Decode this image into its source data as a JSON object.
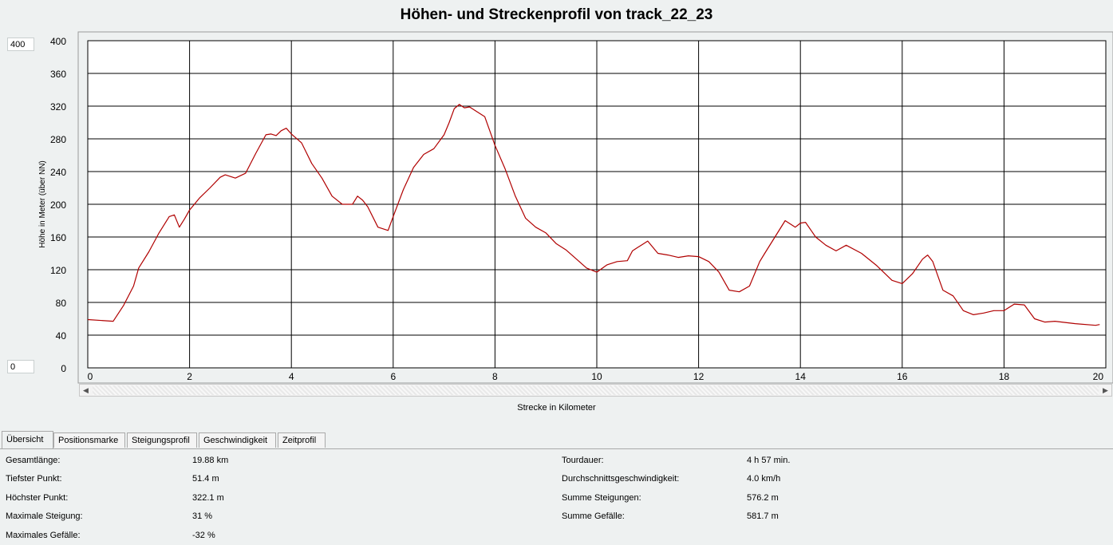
{
  "chart_data": {
    "type": "line",
    "title": "Höhen- und Streckenprofil von track_22_23",
    "xlabel": "Strecke in Kilometer",
    "ylabel": "Höhe in Meter (über NN)",
    "xlim": [
      0,
      20
    ],
    "ylim": [
      0,
      400
    ],
    "x_ticks": [
      0,
      2,
      4,
      6,
      8,
      10,
      12,
      14,
      16,
      18,
      20
    ],
    "y_ticks": [
      0,
      40,
      80,
      120,
      160,
      200,
      240,
      280,
      320,
      360,
      400
    ],
    "grid": true,
    "line_color": "#b00000",
    "x": [
      0,
      0.5,
      0.7,
      0.9,
      1.0,
      1.2,
      1.4,
      1.6,
      1.7,
      1.8,
      1.9,
      2.0,
      2.2,
      2.4,
      2.6,
      2.7,
      2.9,
      3.1,
      3.3,
      3.5,
      3.6,
      3.7,
      3.8,
      3.9,
      4.0,
      4.2,
      4.4,
      4.6,
      4.8,
      5.0,
      5.2,
      5.3,
      5.4,
      5.5,
      5.7,
      5.9,
      6.0,
      6.2,
      6.4,
      6.6,
      6.8,
      7.0,
      7.1,
      7.2,
      7.3,
      7.4,
      7.5,
      7.6,
      7.8,
      8.0,
      8.2,
      8.4,
      8.6,
      8.8,
      9.0,
      9.2,
      9.4,
      9.6,
      9.8,
      10.0,
      10.2,
      10.4,
      10.6,
      10.7,
      10.8,
      10.9,
      11.0,
      11.2,
      11.4,
      11.6,
      11.8,
      12.0,
      12.2,
      12.4,
      12.6,
      12.8,
      13.0,
      13.2,
      13.3,
      13.5,
      13.7,
      13.9,
      14.0,
      14.1,
      14.3,
      14.5,
      14.7,
      14.9,
      15.2,
      15.5,
      15.8,
      16.0,
      16.2,
      16.4,
      16.5,
      16.6,
      16.8,
      17.0,
      17.2,
      17.4,
      17.6,
      17.8,
      18.0,
      18.2,
      18.4,
      18.6,
      18.8,
      19.0,
      19.4,
      19.8,
      19.88
    ],
    "y": [
      59,
      57,
      76,
      100,
      122,
      142,
      165,
      185,
      187,
      172,
      182,
      193,
      208,
      220,
      233,
      236,
      232,
      238,
      262,
      285,
      286,
      284,
      290,
      293,
      286,
      275,
      250,
      232,
      210,
      200,
      200,
      210,
      205,
      197,
      172,
      168,
      185,
      218,
      245,
      261,
      268,
      285,
      300,
      317,
      322,
      318,
      319,
      315,
      307,
      272,
      243,
      210,
      183,
      172,
      165,
      152,
      144,
      133,
      122,
      117,
      126,
      130,
      131,
      143,
      147,
      151,
      155,
      140,
      138,
      135,
      137,
      136,
      130,
      117,
      95,
      93,
      100,
      130,
      140,
      160,
      180,
      172,
      177,
      178,
      160,
      150,
      143,
      150,
      140,
      125,
      107,
      103,
      115,
      133,
      138,
      130,
      95,
      88,
      70,
      65,
      67,
      70,
      70,
      78,
      77,
      60,
      56,
      57,
      54,
      52,
      53
    ]
  },
  "range": {
    "max": "400",
    "min": "0"
  },
  "tabs": [
    {
      "label": "Übersicht",
      "active": true
    },
    {
      "label": "Positionsmarke"
    },
    {
      "label": "Steigungsprofil"
    },
    {
      "label": "Geschwindigkeit"
    },
    {
      "label": "Zeitprofil"
    }
  ],
  "stats_left": [
    {
      "label": "Gesamtlänge:",
      "value": "19.88 km"
    },
    {
      "label": "Tiefster Punkt:",
      "value": "51.4 m"
    },
    {
      "label": "Höchster Punkt:",
      "value": "322.1 m"
    },
    {
      "label": "Maximale Steigung:",
      "value": "31 %"
    },
    {
      "label": "Maximales Gefälle:",
      "value": "-32 %"
    }
  ],
  "stats_right": [
    {
      "label": "Tourdauer:",
      "value": "4 h 57 min."
    },
    {
      "label": "Durchschnittsgeschwindigkeit:",
      "value": "4.0 km/h"
    },
    {
      "label": "Summe Steigungen:",
      "value": "576.2 m"
    },
    {
      "label": "Summe Gefälle:",
      "value": "581.7 m"
    }
  ],
  "icons": {
    "scroll_left": "triangle-left",
    "scroll_right": "triangle-right"
  }
}
